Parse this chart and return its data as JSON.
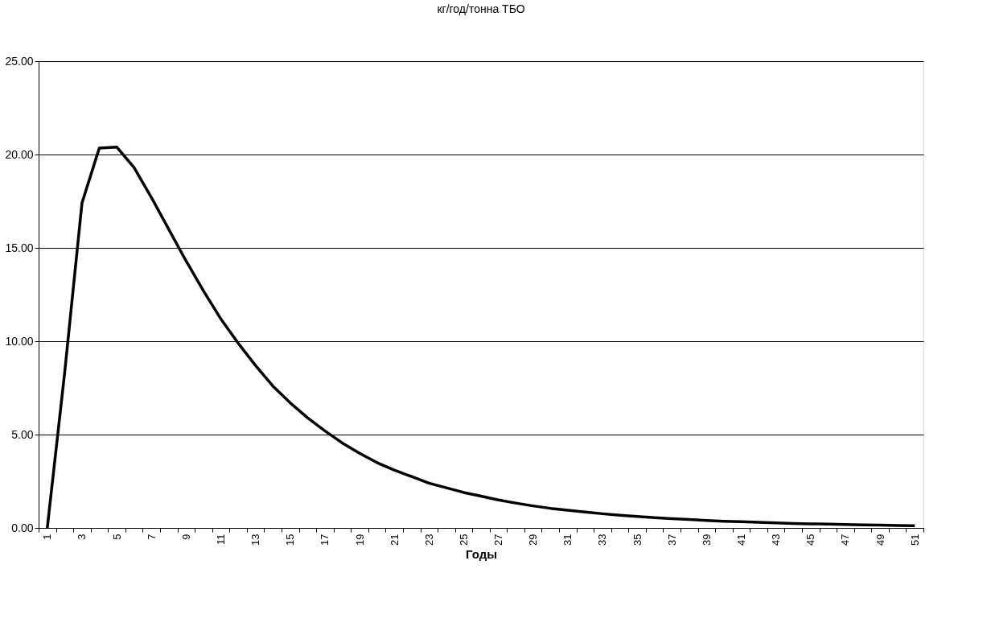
{
  "chart_data": {
    "type": "line",
    "title": "кг/год/тонна ТБО",
    "xlabel": "Годы",
    "categories": [
      "1",
      null,
      "3",
      null,
      "5",
      null,
      "7",
      null,
      "9",
      null,
      "11",
      null,
      "13",
      null,
      "15",
      null,
      "17",
      null,
      "19",
      null,
      "21",
      null,
      "23",
      null,
      "25",
      null,
      "27",
      null,
      "29",
      null,
      "31",
      null,
      "33",
      null,
      "35",
      null,
      "37",
      null,
      "39",
      null,
      "41",
      null,
      "43",
      null,
      "45",
      null,
      "47",
      null,
      "49",
      null,
      "51"
    ],
    "series": [
      {
        "color": "#000000",
        "values": [
          0,
          8.3,
          17.4,
          20.35,
          20.4,
          19.3,
          17.7,
          16.0,
          14.3,
          12.7,
          11.2,
          9.9,
          8.7,
          7.6,
          6.7,
          5.9,
          5.2,
          4.55,
          4.0,
          3.5,
          3.1,
          2.75,
          2.4,
          2.15,
          1.9,
          1.7,
          1.5,
          1.33,
          1.18,
          1.05,
          0.95,
          0.85,
          0.76,
          0.68,
          0.61,
          0.55,
          0.5,
          0.45,
          0.4,
          0.36,
          0.33,
          0.3,
          0.27,
          0.24,
          0.22,
          0.2,
          0.18,
          0.16,
          0.15,
          0.13,
          0.12
        ]
      }
    ],
    "ylim": [
      0,
      25
    ],
    "yticks": [
      {
        "value": 0,
        "label": "0.00"
      },
      {
        "value": 5,
        "label": "5.00"
      },
      {
        "value": 10,
        "label": "10.00"
      },
      {
        "value": 15,
        "label": "15.00"
      },
      {
        "value": 20,
        "label": "20.00"
      },
      {
        "value": 25,
        "label": "25.00"
      }
    ],
    "grid": "y",
    "marker": "none",
    "line_style": "solid"
  }
}
